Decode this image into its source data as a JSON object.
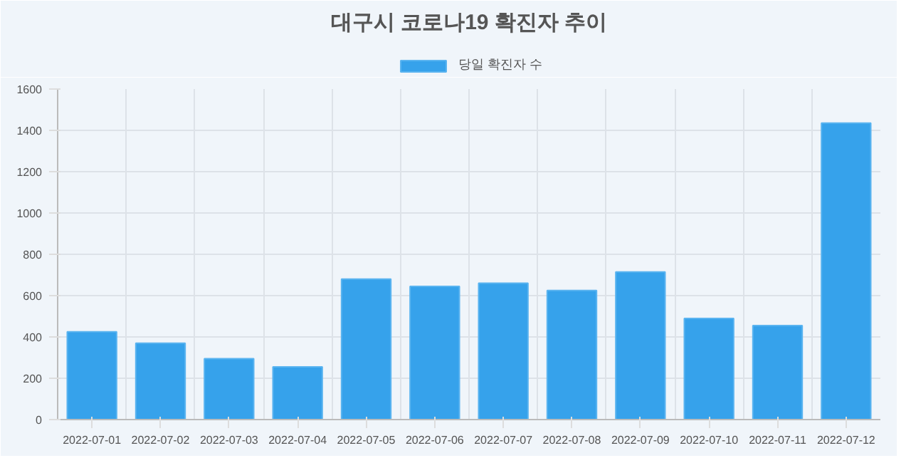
{
  "chart_data": {
    "type": "bar",
    "title": "대구시 코로나19 확진자 추이",
    "categories": [
      "2022-07-01",
      "2022-07-02",
      "2022-07-03",
      "2022-07-04",
      "2022-07-05",
      "2022-07-06",
      "2022-07-07",
      "2022-07-08",
      "2022-07-09",
      "2022-07-10",
      "2022-07-11",
      "2022-07-12"
    ],
    "series": [
      {
        "name": "당일 확진자 수",
        "color": "#36a2eb",
        "values": [
          425,
          370,
          295,
          255,
          680,
          645,
          660,
          625,
          715,
          490,
          455,
          1435
        ]
      }
    ],
    "ylim": [
      0,
      1600
    ],
    "yticks": [
      0,
      200,
      400,
      600,
      800,
      1000,
      1200,
      1400,
      1600
    ],
    "grid": true,
    "legend": "top"
  }
}
